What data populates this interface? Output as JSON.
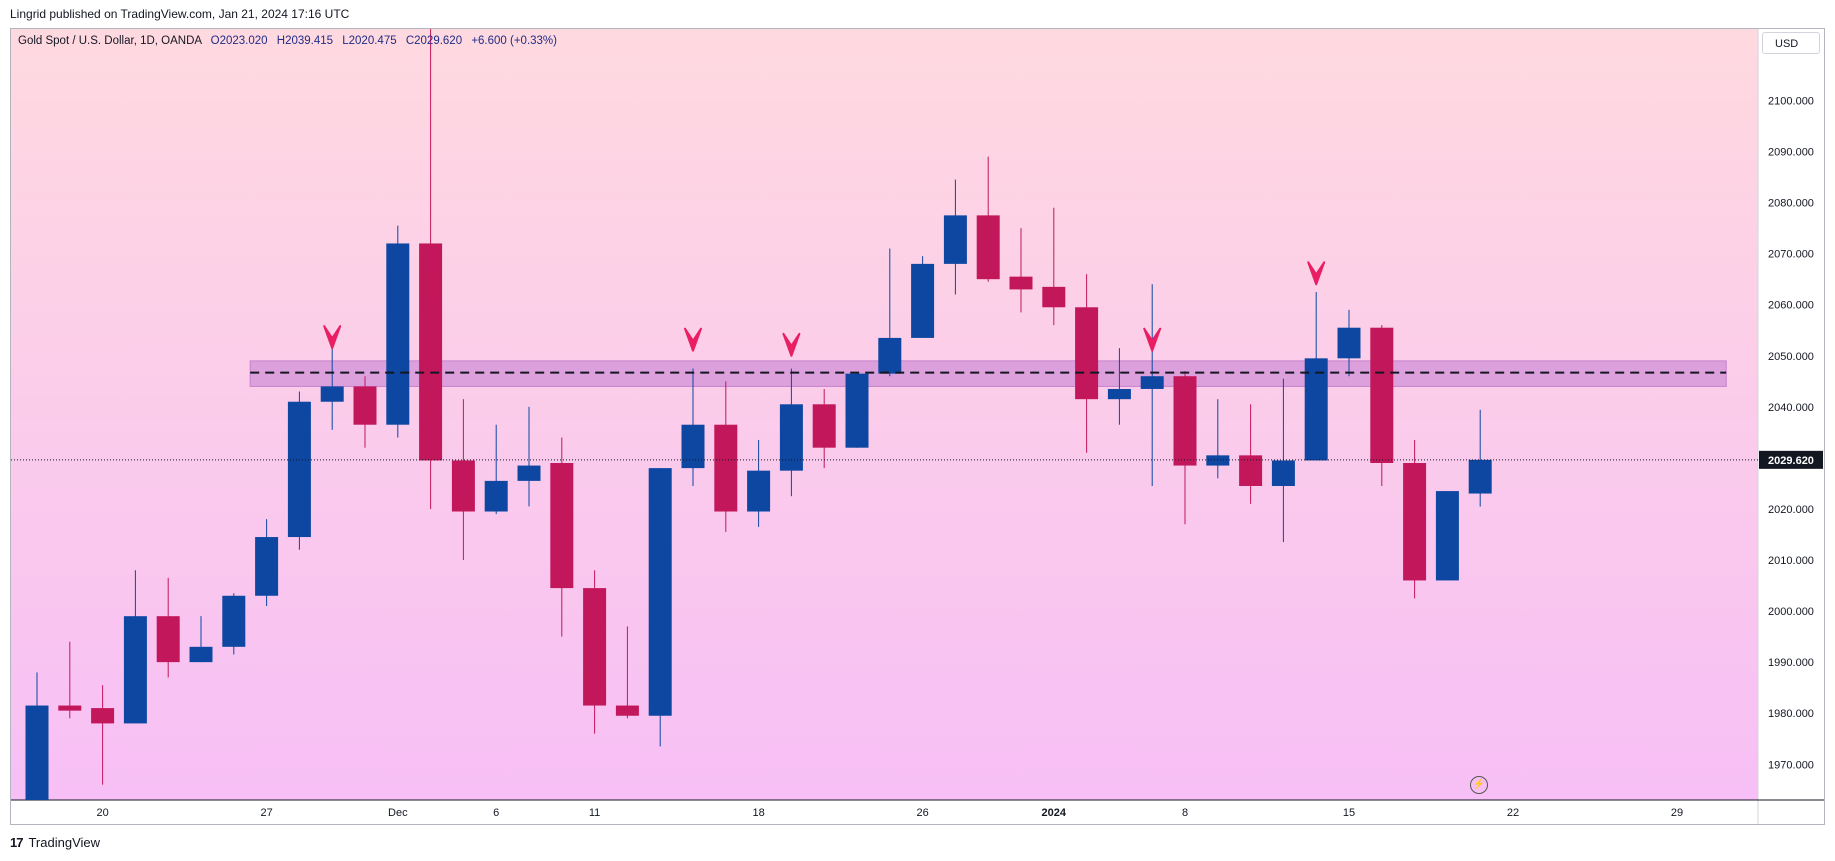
{
  "publisher_line": "Lingrid published on TradingView.com, Jan 21, 2024 17:16 UTC",
  "legend": {
    "symbol": "Gold Spot / U.S. Dollar, 1D, OANDA",
    "open": "O2023.020",
    "high": "H2039.415",
    "low": "L2020.475",
    "close": "C2029.620",
    "change": "+6.600 (+0.33%)"
  },
  "currency": "USD",
  "footer_brand": "TradingView",
  "colors": {
    "up": "#0d47a1",
    "down": "#c2185b",
    "arrow": "#e91e63",
    "zone": "#d291d8",
    "bg_top": "#ffd9e0",
    "bg_bottom": "#f7bff5"
  },
  "chart_data": {
    "type": "candlestick",
    "title": "Gold Spot / U.S. Dollar, 1D, OANDA",
    "ylim": [
      1963,
      2114
    ],
    "y_ticks": [
      1970,
      1980,
      1990,
      2000,
      2010,
      2020,
      2030,
      2040,
      2050,
      2060,
      2070,
      2080,
      2090,
      2100
    ],
    "y_tick_labels": [
      "1970.000",
      "1980.000",
      "1990.000",
      "2000.000",
      "2010.000",
      "2020.000",
      "2030.000",
      "2040.000",
      "2050.000",
      "2060.000",
      "2070.000",
      "2080.000",
      "2090.000",
      "2100.000"
    ],
    "x_ticks": [
      {
        "i": 2,
        "label": "20",
        "bold": false
      },
      {
        "i": 7,
        "label": "27",
        "bold": false
      },
      {
        "i": 11,
        "label": "Dec",
        "bold": false
      },
      {
        "i": 14,
        "label": "6",
        "bold": false
      },
      {
        "i": 17,
        "label": "11",
        "bold": false
      },
      {
        "i": 22,
        "label": "18",
        "bold": false
      },
      {
        "i": 27,
        "label": "26",
        "bold": false
      },
      {
        "i": 31,
        "label": "2024",
        "bold": true
      },
      {
        "i": 35,
        "label": "8",
        "bold": false
      },
      {
        "i": 40,
        "label": "15",
        "bold": false
      },
      {
        "i": 45,
        "label": "22",
        "bold": false
      },
      {
        "i": 50,
        "label": "29",
        "bold": false
      }
    ],
    "candles": [
      {
        "o": 1963,
        "h": 1988,
        "l": 1963,
        "c": 1981.5
      },
      {
        "o": 1981.5,
        "h": 1994,
        "l": 1979,
        "c": 1980.5
      },
      {
        "o": 1981,
        "h": 1985.5,
        "l": 1966,
        "c": 1978
      },
      {
        "o": 1978,
        "h": 2008,
        "l": 1978,
        "c": 1999
      },
      {
        "o": 1999,
        "h": 2006.5,
        "l": 1987,
        "c": 1990
      },
      {
        "o": 1990,
        "h": 1999,
        "l": 1990,
        "c": 1993
      },
      {
        "o": 1993,
        "h": 2003.5,
        "l": 1991.5,
        "c": 2003
      },
      {
        "o": 2003,
        "h": 2018,
        "l": 2001,
        "c": 2014.5
      },
      {
        "o": 2014.5,
        "h": 2043,
        "l": 2012,
        "c": 2041
      },
      {
        "o": 2041,
        "h": 2052,
        "l": 2035.5,
        "c": 2044
      },
      {
        "o": 2044,
        "h": 2046,
        "l": 2032,
        "c": 2036.5
      },
      {
        "o": 2036.5,
        "h": 2075.5,
        "l": 2034,
        "c": 2072
      },
      {
        "o": 2072,
        "h": 2114,
        "l": 2020,
        "c": 2029.5
      },
      {
        "o": 2029.5,
        "h": 2041.5,
        "l": 2010,
        "c": 2019.5
      },
      {
        "o": 2019.5,
        "h": 2036.5,
        "l": 2019,
        "c": 2025.5
      },
      {
        "o": 2025.5,
        "h": 2040,
        "l": 2020.5,
        "c": 2028.5
      },
      {
        "o": 2029,
        "h": 2034,
        "l": 1995,
        "c": 2004.5
      },
      {
        "o": 2004.5,
        "h": 2008,
        "l": 1976,
        "c": 1981.5
      },
      {
        "o": 1981.5,
        "h": 1997,
        "l": 1979,
        "c": 1979.5
      },
      {
        "o": 1979.5,
        "h": 2028,
        "l": 1973.5,
        "c": 2028
      },
      {
        "o": 2028,
        "h": 2047.5,
        "l": 2024.5,
        "c": 2036.5
      },
      {
        "o": 2036.5,
        "h": 2045,
        "l": 2015.5,
        "c": 2019.5
      },
      {
        "o": 2019.5,
        "h": 2033.5,
        "l": 2016.5,
        "c": 2027.5
      },
      {
        "o": 2027.5,
        "h": 2047.5,
        "l": 2022.5,
        "c": 2040.5
      },
      {
        "o": 2040.5,
        "h": 2043.5,
        "l": 2028,
        "c": 2032
      },
      {
        "o": 2032,
        "h": 2046.5,
        "l": 2032,
        "c": 2046.5
      },
      {
        "o": 2046.5,
        "h": 2071,
        "l": 2046,
        "c": 2053.5
      },
      {
        "o": 2053.5,
        "h": 2069.5,
        "l": 2053.5,
        "c": 2068
      },
      {
        "o": 2068,
        "h": 2084.5,
        "l": 2062,
        "c": 2077.5
      },
      {
        "o": 2077.5,
        "h": 2089,
        "l": 2064.5,
        "c": 2065
      },
      {
        "o": 2065.5,
        "h": 2075,
        "l": 2058.5,
        "c": 2063
      },
      {
        "o": 2063.5,
        "h": 2079,
        "l": 2056,
        "c": 2059.5
      },
      {
        "o": 2059.5,
        "h": 2066,
        "l": 2031,
        "c": 2041.5
      },
      {
        "o": 2041.5,
        "h": 2051.5,
        "l": 2036.5,
        "c": 2043.5
      },
      {
        "o": 2043.5,
        "h": 2064,
        "l": 2024.5,
        "c": 2046
      },
      {
        "o": 2046,
        "h": 2047,
        "l": 2017,
        "c": 2028.5
      },
      {
        "o": 2028.5,
        "h": 2041.5,
        "l": 2026,
        "c": 2030.5
      },
      {
        "o": 2030.5,
        "h": 2040.5,
        "l": 2021,
        "c": 2024.5
      },
      {
        "o": 2024.5,
        "h": 2045.5,
        "l": 2013.5,
        "c": 2029.5
      },
      {
        "o": 2029.5,
        "h": 2062.5,
        "l": 2029.5,
        "c": 2049.5
      },
      {
        "o": 2049.5,
        "h": 2059,
        "l": 2046,
        "c": 2055.5
      },
      {
        "o": 2055.5,
        "h": 2056,
        "l": 2024.5,
        "c": 2029
      },
      {
        "o": 2029,
        "h": 2033.5,
        "l": 2002.5,
        "c": 2006
      },
      {
        "o": 2006,
        "h": 2023.5,
        "l": 2006,
        "c": 2023.5
      },
      {
        "o": 2023.02,
        "h": 2039.415,
        "l": 2020.475,
        "c": 2029.62
      }
    ],
    "zone": {
      "low": 2044,
      "high": 2049,
      "level": 2046.7,
      "from_index": 6.5,
      "to_index": 51.5
    },
    "arrows": [
      {
        "i": 9,
        "price": 2051.5
      },
      {
        "i": 20,
        "price": 2051
      },
      {
        "i": 23,
        "price": 2050
      },
      {
        "i": 34,
        "price": 2051
      },
      {
        "i": 39,
        "price": 2064
      }
    ],
    "last_price": 2029.62,
    "last_price_label": "2029.620"
  }
}
